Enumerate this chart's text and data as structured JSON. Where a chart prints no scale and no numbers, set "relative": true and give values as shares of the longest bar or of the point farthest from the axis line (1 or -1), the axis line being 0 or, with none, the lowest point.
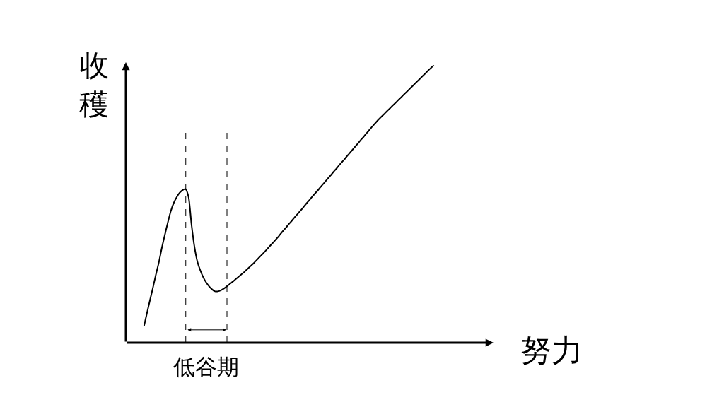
{
  "chart_data": {
    "type": "line",
    "ylabel": "收穫",
    "xlabel": "努力",
    "relative": true,
    "categories": [
      null,
      null,
      null,
      null,
      null,
      null,
      null,
      null,
      null,
      null,
      null,
      null,
      null,
      null,
      null,
      null,
      null,
      null,
      null,
      null,
      null,
      null,
      null,
      null,
      null,
      null,
      null,
      null,
      null,
      null,
      null,
      null,
      null,
      null,
      null,
      null,
      null,
      null,
      null,
      null,
      null,
      null,
      null,
      null,
      null,
      null,
      null,
      null,
      null,
      null,
      null,
      null,
      null,
      null,
      null,
      null,
      null,
      null,
      null,
      null,
      null,
      null,
      null,
      null,
      null,
      null,
      null,
      null,
      null,
      null,
      null,
      null,
      null,
      null,
      null,
      null,
      null,
      null,
      null,
      null,
      null,
      null,
      null,
      null,
      null,
      null,
      null,
      null,
      null,
      null,
      null,
      null,
      null,
      null,
      null,
      null,
      null,
      null,
      null
    ],
    "series": [
      {
        "color": "#000000",
        "values": [
          0.061,
          0.108,
          0.154,
          0.199,
          0.246,
          0.29,
          0.342,
          0.388,
          0.432,
          0.473,
          0.503,
          0.524,
          0.54,
          0.55,
          0.554,
          0.527,
          0.429,
          0.348,
          0.293,
          0.261,
          0.236,
          0.217,
          0.203,
          0.192,
          0.185,
          0.185,
          0.189,
          0.195,
          0.203,
          0.212,
          0.22,
          0.229,
          0.238,
          0.247,
          0.256,
          0.266,
          0.276,
          0.286,
          0.297,
          0.308,
          0.319,
          0.33,
          0.342,
          0.354,
          0.365,
          0.377,
          0.39,
          0.403,
          0.415,
          0.428,
          0.44,
          0.453,
          0.465,
          0.477,
          0.49,
          0.503,
          0.515,
          0.528,
          0.54,
          0.552,
          0.565,
          0.577,
          0.59,
          0.602,
          0.615,
          0.627,
          0.64,
          0.652,
          0.664,
          0.677,
          0.689,
          0.702,
          0.714,
          0.727,
          0.739,
          0.752,
          0.764,
          0.777,
          0.789,
          0.801,
          0.812,
          0.822,
          0.833,
          0.843,
          0.854,
          0.864,
          0.875,
          0.885,
          0.896,
          0.906,
          0.917,
          0.927,
          0.938,
          0.948,
          0.959,
          0.969,
          0.98,
          0.99,
          1.0
        ]
      }
    ],
    "annotations": [
      "低谷期"
    ]
  }
}
